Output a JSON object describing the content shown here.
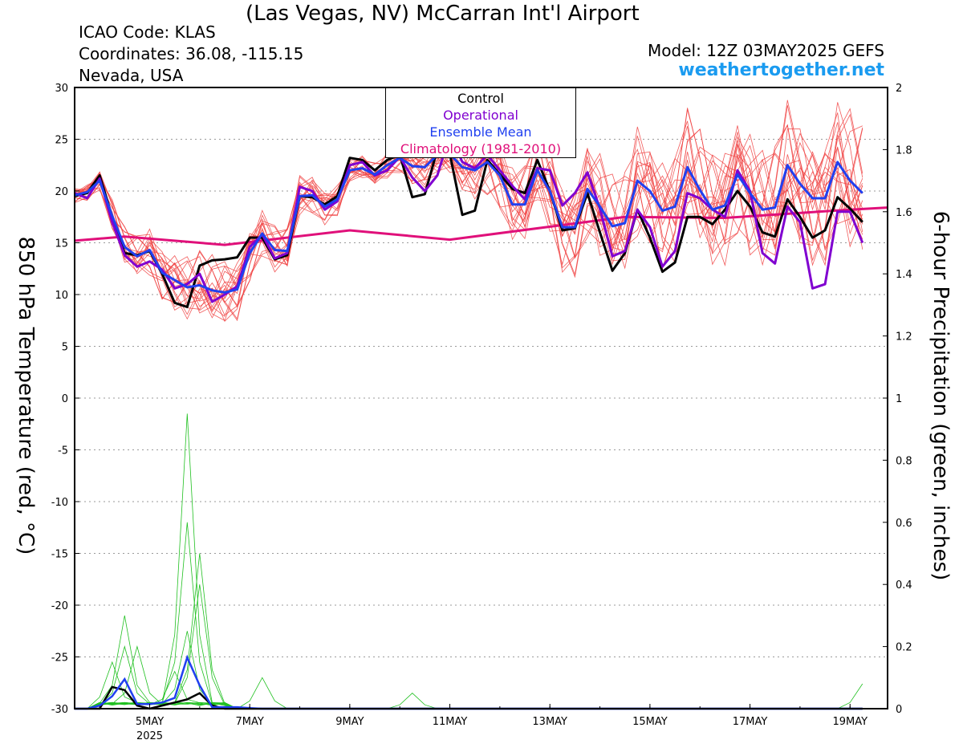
{
  "header": {
    "title": "(Las Vegas, NV) McCarran Int'l Airport",
    "icao": "ICAO Code: KLAS",
    "coords": "Coordinates: 36.08, -115.15",
    "region": "Nevada, USA",
    "model": "Model: 12Z 03MAY2025 GEFS",
    "site": "weathertogether.net"
  },
  "legend": {
    "control": "Control",
    "operational": "Operational",
    "mean": "Ensemble Mean",
    "climo": "Climatology (1981-2010)"
  },
  "colors": {
    "control": "#000000",
    "operational": "#8000d0",
    "mean": "#2040f0",
    "climo": "#e0107a",
    "members_temp": "#f04040",
    "members_precip": "#20c020",
    "site": "#1a9bf0"
  },
  "chart_data": {
    "type": "line",
    "ylabel": "850 hPa Temperature (red, °C)",
    "y2label": "6-hour Precipitation (green, inches)",
    "ylim": [
      -30,
      30
    ],
    "y2lim": [
      0,
      2
    ],
    "yticks": [
      30,
      25,
      20,
      15,
      10,
      5,
      0,
      -5,
      -10,
      -15,
      -20,
      -25,
      -30
    ],
    "y2ticks": [
      2,
      1.8,
      1.6,
      1.4,
      1.2,
      1,
      0.8,
      0.6,
      0.4,
      0.2,
      0
    ],
    "xticks": [
      "5MAY",
      "7MAY",
      "9MAY",
      "11MAY",
      "13MAY",
      "15MAY",
      "17MAY",
      "19MAY"
    ],
    "xsub": "2025",
    "grid": "dotted horizontal",
    "time_range_hours_from_4may00z": [
      -12,
      378
    ],
    "time_step_hours": 6,
    "temp_series": [
      {
        "name": "Control",
        "values": [
          19.5,
          19.8,
          21.5,
          17.5,
          14.0,
          13.8,
          14.2,
          12.0,
          9.2,
          8.8,
          12.8,
          13.3,
          13.4,
          13.6,
          15.5,
          15.5,
          13.4,
          13.8,
          19.5,
          19.4,
          18.7,
          19.5,
          23.2,
          23.0,
          22.0,
          23.0,
          23.5,
          19.4,
          19.7,
          24.0,
          23.6,
          17.7,
          18.1,
          23.0,
          21.6,
          20.2,
          19.8,
          23.0,
          20.0,
          16.2,
          16.4,
          19.8,
          16.0,
          12.3,
          14.0,
          18.2,
          15.5,
          12.2,
          13.1,
          17.5,
          17.5,
          16.8,
          18.2,
          20.0,
          18.5,
          16.0,
          15.6,
          19.2,
          17.5,
          15.5,
          16.2,
          19.4,
          18.3,
          17.0
        ]
      },
      {
        "name": "Operational",
        "values": [
          19.8,
          19.3,
          21.2,
          17.0,
          13.8,
          12.7,
          13.2,
          12.4,
          10.6,
          11.0,
          12.0,
          9.3,
          10.0,
          10.8,
          14.6,
          15.8,
          13.5,
          14.0,
          20.4,
          20.0,
          18.2,
          19.0,
          22.5,
          22.8,
          21.5,
          22.0,
          23.3,
          21.3,
          20.0,
          21.5,
          25.5,
          22.8,
          22.2,
          23.5,
          22.0,
          20.5,
          19.2,
          22.2,
          22.0,
          18.6,
          19.8,
          21.8,
          18.3,
          13.7,
          14.2,
          18.2,
          16.5,
          12.7,
          14.2,
          19.8,
          19.3,
          18.2,
          17.5,
          22.0,
          20.0,
          14.0,
          13.0,
          18.5,
          17.0,
          10.6,
          11.0,
          18.0,
          18.0,
          15.0
        ]
      },
      {
        "name": "Ensemble Mean",
        "values": [
          19.6,
          19.9,
          21.0,
          17.6,
          14.6,
          13.7,
          14.3,
          12.1,
          11.4,
          10.7,
          10.9,
          10.4,
          10.2,
          10.5,
          14.0,
          15.9,
          14.3,
          14.2,
          19.5,
          19.6,
          18.5,
          19.2,
          22.0,
          22.2,
          21.6,
          22.5,
          23.2,
          22.4,
          22.3,
          23.5,
          23.6,
          22.3,
          22.0,
          22.8,
          21.5,
          18.7,
          18.7,
          22.0,
          20.0,
          16.5,
          16.5,
          20.2,
          18.5,
          16.6,
          16.9,
          21.0,
          20.0,
          18.1,
          18.5,
          22.3,
          20.1,
          18.2,
          18.6,
          21.6,
          19.8,
          18.2,
          18.4,
          22.5,
          20.7,
          19.3,
          19.3,
          22.8,
          21.0,
          19.8
        ]
      }
    ],
    "climatology": {
      "name": "Climatology (1981-2010)",
      "x_hours": [
        -12,
        12,
        60,
        120,
        168,
        252,
        300,
        360,
        378
      ],
      "values": [
        15.2,
        15.6,
        14.8,
        16.2,
        15.3,
        17.5,
        17.4,
        18.2,
        18.4
      ]
    },
    "members_temp_count": 20,
    "members_temp_spread": [
      0.8,
      0.8,
      1.0,
      1.6,
      2.0,
      2.2,
      2.5,
      2.8,
      3.0,
      3.2,
      3.5,
      3.5,
      3.3,
      3.0,
      2.8,
      2.5,
      2.4,
      2.4,
      2.0,
      2.0,
      1.8,
      1.6,
      1.2,
      1.2,
      1.2,
      1.3,
      1.5,
      1.8,
      2.0,
      2.2,
      2.4,
      2.8,
      3.0,
      3.2,
      3.5,
      3.8,
      4.0,
      4.2,
      4.4,
      4.6,
      4.8,
      5.0,
      5.2,
      5.2,
      5.4,
      5.5,
      5.6,
      5.7,
      5.8,
      5.9,
      6.0,
      6.0,
      6.0,
      6.1,
      6.2,
      6.2,
      6.3,
      6.3,
      6.4,
      6.5,
      6.6,
      6.8,
      7.0,
      7.2
    ],
    "precip_series": [
      {
        "name": "Control",
        "values": [
          0,
          0,
          0,
          0.07,
          0.06,
          0.01,
          0,
          0.01,
          0.02,
          0.03,
          0.05,
          0.01,
          0,
          0,
          0,
          0,
          0,
          0,
          0,
          0,
          0,
          0,
          0,
          0,
          0,
          0,
          0,
          0,
          0,
          0,
          0,
          0,
          0,
          0,
          0,
          0,
          0,
          0,
          0,
          0,
          0,
          0,
          0,
          0,
          0,
          0,
          0,
          0,
          0,
          0,
          0,
          0,
          0,
          0,
          0,
          0,
          0,
          0,
          0,
          0,
          0,
          0,
          0,
          0
        ]
      },
      {
        "name": "Ensemble Mean",
        "values": [
          0,
          0,
          0.01,
          0.04,
          0.095,
          0.015,
          0.015,
          0.02,
          0.035,
          0.165,
          0.075,
          0.005,
          0.005,
          0.005,
          0.002,
          0,
          0,
          0,
          0,
          0,
          0,
          0,
          0,
          0,
          0,
          0,
          0,
          0,
          0,
          0,
          0,
          0,
          0,
          0,
          0,
          0,
          0,
          0,
          0,
          0,
          0,
          0,
          0,
          0,
          0,
          0,
          0,
          0,
          0,
          0,
          0,
          0,
          0,
          0,
          0,
          0,
          0,
          0,
          0,
          0,
          0,
          0,
          0,
          0
        ]
      }
    ],
    "precip_member_peaks": [
      {
        "member": 1,
        "peak": 0.95,
        "step": 9
      },
      {
        "member": 2,
        "peak": 0.6,
        "step": 9
      },
      {
        "member": 3,
        "peak": 0.3,
        "step": 4
      },
      {
        "member": 4,
        "peak": 0.5,
        "step": 10
      },
      {
        "member": 5,
        "peak": 0.2,
        "step": 4
      },
      {
        "member": 6,
        "peak": 0.25,
        "step": 9
      },
      {
        "member": 7,
        "peak": 0.15,
        "step": 3
      },
      {
        "member": 8,
        "peak": 0.4,
        "step": 10
      },
      {
        "member": 9,
        "peak": 0.1,
        "step": 15
      },
      {
        "member": 10,
        "peak": 0.2,
        "step": 5
      },
      {
        "member": 11,
        "peak": 0.12,
        "step": 8
      },
      {
        "member": 12,
        "peak": 0.05,
        "step": 27
      },
      {
        "member": 13,
        "peak": 0.08,
        "step": 63
      }
    ]
  }
}
